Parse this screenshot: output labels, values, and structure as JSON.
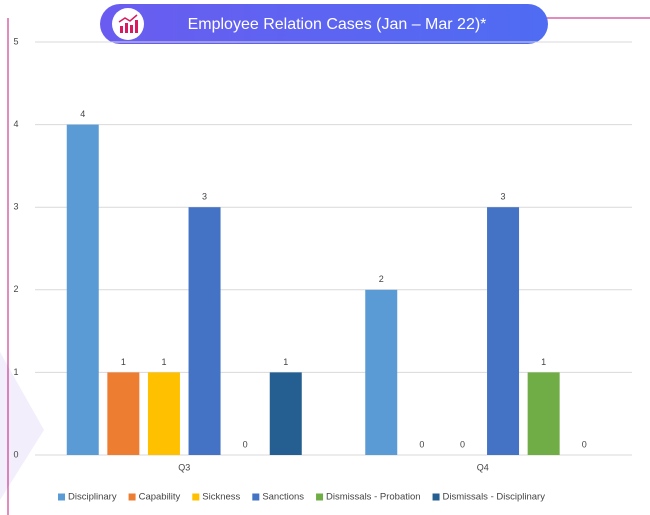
{
  "chart_data": {
    "type": "bar",
    "title": "Employee Relation Cases (Jan – Mar 22)*",
    "categories": [
      "Q3",
      "Q4"
    ],
    "series": [
      {
        "name": "Disciplinary",
        "color": "#5b9bd5",
        "values": [
          4,
          2
        ]
      },
      {
        "name": "Capability",
        "color": "#ed7d31",
        "values": [
          1,
          0
        ]
      },
      {
        "name": "Sickness",
        "color": "#ffc000",
        "values": [
          1,
          0
        ]
      },
      {
        "name": "Sanctions",
        "color": "#4472c4",
        "values": [
          3,
          3
        ]
      },
      {
        "name": "Dismissals - Probation",
        "color": "#70ad47",
        "values": [
          0,
          1
        ]
      },
      {
        "name": "Dismissals - Disciplinary",
        "color": "#255e91",
        "values": [
          1,
          0
        ]
      }
    ],
    "ylim": [
      0,
      5
    ],
    "yticks": [
      0,
      1,
      2,
      3,
      4,
      5
    ],
    "grid": true,
    "legend": "bottom"
  }
}
